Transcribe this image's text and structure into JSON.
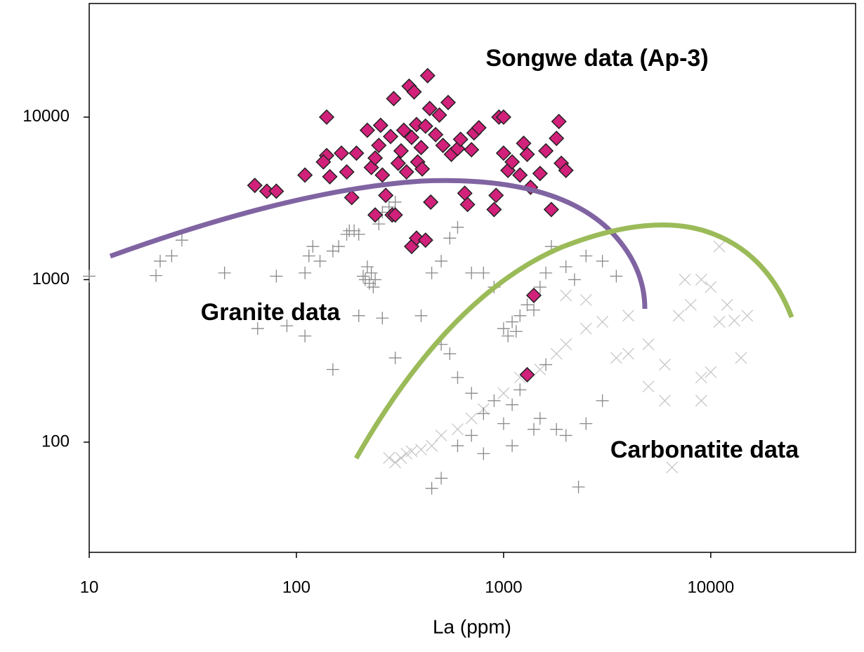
{
  "chart_data": {
    "type": "scatter",
    "xlabel": "La (ppm)",
    "annotations": [
      "Songwe data (Ap-3)",
      "Granite data",
      "Carbonatite data"
    ],
    "xscale": "log",
    "yscale": "log",
    "xlim": [
      10,
      50000
    ],
    "ylim": [
      21,
      50000
    ],
    "xticks": [
      10,
      100,
      1000,
      10000
    ],
    "yticks": [
      100,
      1000,
      10000
    ],
    "series": [
      {
        "marker": "x",
        "color": "#c4c4c4",
        "x": [
          280,
          300,
          320,
          340,
          360,
          400,
          450,
          500,
          600,
          700,
          800,
          1000,
          1200,
          1500,
          1800,
          2000,
          2500,
          3000,
          4000,
          5000,
          6000,
          7000,
          8000,
          9000,
          10000,
          11000,
          12000,
          13000,
          14000,
          15000,
          9000,
          10000,
          6000,
          5000,
          2500,
          2000,
          4000,
          7500,
          11000,
          6500,
          3500,
          9000
        ],
        "y": [
          80,
          75,
          80,
          85,
          88,
          90,
          95,
          110,
          120,
          140,
          160,
          200,
          250,
          280,
          350,
          400,
          500,
          550,
          600,
          400,
          300,
          600,
          700,
          1000,
          900,
          550,
          700,
          560,
          330,
          600,
          250,
          270,
          180,
          220,
          750,
          800,
          350,
          1000,
          1600,
          70,
          330,
          180
        ]
      },
      {
        "marker": "plus",
        "color": "#8a8a8a",
        "x": [
          10,
          21,
          22,
          25,
          28,
          45,
          80,
          110,
          115,
          120,
          130,
          150,
          160,
          175,
          180,
          190,
          200,
          210,
          215,
          220,
          225,
          230,
          240,
          235,
          250,
          260,
          280,
          300,
          90,
          65,
          110,
          150,
          200,
          260,
          300,
          400,
          450,
          500,
          550,
          600,
          700,
          800,
          900,
          1000,
          1050,
          1100,
          1150,
          1200,
          1300,
          1400,
          1500,
          1600,
          1700,
          2000,
          2200,
          2500,
          3000,
          3500,
          500,
          550,
          600,
          700,
          800,
          900,
          1000,
          1100,
          1200,
          1400,
          1500,
          1800,
          2000,
          2500,
          600,
          700,
          800,
          450,
          500,
          2300,
          3000,
          1100,
          1300,
          1600
        ],
        "y": [
          1050,
          1060,
          1300,
          1400,
          1750,
          1100,
          1050,
          1100,
          1400,
          1600,
          1300,
          1500,
          1600,
          1900,
          2000,
          2000,
          1900,
          1050,
          1000,
          1200,
          950,
          1100,
          1000,
          900,
          2200,
          2600,
          2800,
          3000,
          520,
          500,
          450,
          280,
          600,
          580,
          330,
          600,
          1100,
          1300,
          1800,
          2100,
          1100,
          1100,
          900,
          500,
          450,
          550,
          480,
          600,
          700,
          650,
          900,
          1100,
          1600,
          1200,
          1000,
          1400,
          1300,
          1050,
          400,
          350,
          250,
          200,
          150,
          180,
          130,
          170,
          210,
          120,
          140,
          120,
          110,
          130,
          95,
          110,
          85,
          52,
          60,
          53,
          180,
          95,
          260,
          300
        ]
      },
      {
        "marker": "diamond",
        "color": "#d1217a",
        "x": [
          63,
          72,
          80,
          110,
          140,
          140,
          135,
          145,
          165,
          175,
          185,
          195,
          220,
          230,
          240,
          250,
          255,
          260,
          270,
          285,
          290,
          295,
          310,
          320,
          330,
          340,
          350,
          360,
          370,
          380,
          385,
          400,
          405,
          420,
          430,
          440,
          445,
          470,
          490,
          510,
          540,
          560,
          600,
          620,
          650,
          670,
          700,
          720,
          760,
          900,
          920,
          950,
          1000,
          1000,
          1050,
          1100,
          1200,
          1250,
          1300,
          1350,
          1400,
          1300,
          1500,
          1600,
          1700,
          1800,
          1850,
          1900,
          2000,
          300,
          240,
          360,
          380,
          420
        ],
        "y": [
          3800,
          3500,
          3500,
          4400,
          10000,
          5800,
          5300,
          4300,
          6000,
          4600,
          3200,
          6000,
          8300,
          4900,
          5600,
          6700,
          8900,
          4400,
          3300,
          7600,
          2500,
          13000,
          5200,
          6200,
          8300,
          4600,
          15500,
          7500,
          14300,
          9000,
          5300,
          6500,
          4800,
          8800,
          18000,
          11300,
          3000,
          7800,
          10300,
          6700,
          12300,
          5900,
          6400,
          7300,
          3400,
          2900,
          6300,
          8000,
          8600,
          2700,
          3300,
          10000,
          10000,
          6000,
          4700,
          5300,
          4400,
          6900,
          5900,
          3700,
          800,
          260,
          4500,
          6200,
          2700,
          7400,
          9400,
          5200,
          4700,
          2500,
          2500,
          1600,
          1800,
          1750
        ]
      }
    ]
  }
}
